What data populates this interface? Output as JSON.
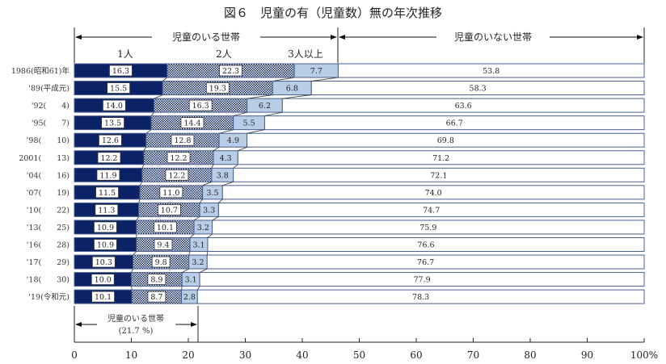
{
  "chart_data": {
    "type": "bar",
    "stacked": true,
    "orientation": "horizontal",
    "title": "図６　児童の有（児童数）無の年次推移",
    "xlim": [
      0,
      100
    ],
    "x_ticks": [
      "0",
      "10",
      "20",
      "30",
      "40",
      "50",
      "60",
      "70",
      "80",
      "90",
      "100%"
    ],
    "group_labels": {
      "with_children": "児童のいる世帯",
      "without_children": "児童のいない世帯"
    },
    "series_labels": [
      "1人",
      "2人",
      "3人以上"
    ],
    "categories": [
      "1986(昭和61)年",
      "'89(平成元)",
      "'92(　　4)",
      "'95(　　7)",
      "'98(　　10)",
      "2001(　　13)",
      "'04(　　16)",
      "'07(　　19)",
      "'10(　　22)",
      "'13(　　25)",
      "'16(　　28)",
      "'17(　　29)",
      "'18(　　30)",
      "'19(令和元)"
    ],
    "series": [
      {
        "name": "1人",
        "values": [
          16.3,
          15.5,
          14.0,
          13.5,
          12.6,
          12.2,
          11.9,
          11.5,
          11.3,
          10.9,
          10.9,
          10.3,
          10.0,
          10.1
        ]
      },
      {
        "name": "2人",
        "values": [
          22.3,
          19.3,
          16.3,
          14.4,
          12.8,
          12.2,
          12.2,
          11.0,
          10.7,
          10.1,
          9.4,
          9.8,
          8.9,
          8.7
        ]
      },
      {
        "name": "3人以上",
        "values": [
          7.7,
          6.8,
          6.2,
          5.5,
          4.9,
          4.3,
          3.8,
          3.5,
          3.3,
          3.2,
          3.1,
          3.2,
          3.1,
          2.8
        ]
      },
      {
        "name": "児童のいない世帯",
        "values": [
          53.8,
          58.3,
          63.6,
          66.7,
          69.8,
          71.2,
          72.1,
          74.0,
          74.7,
          75.9,
          76.6,
          76.7,
          77.9,
          78.3
        ]
      }
    ],
    "value_labels": [
      [
        "16.3",
        "22.3",
        "7.7",
        "53.8"
      ],
      [
        "15.5",
        "19.3",
        "6.8",
        "58.3"
      ],
      [
        "14.0",
        "16.3",
        "6.2",
        "63.6"
      ],
      [
        "13.5",
        "14.4",
        "5.5",
        "66.7"
      ],
      [
        "12.6",
        "12.8",
        "4.9",
        "69.8"
      ],
      [
        "12.2",
        "12.2",
        "4.3",
        "71.2"
      ],
      [
        "11.9",
        "12.2",
        "3.8",
        "72.1"
      ],
      [
        "11.5",
        "11.0",
        "3.5",
        "74.0"
      ],
      [
        "11.3",
        "10.7",
        "3.3",
        "74.7"
      ],
      [
        "10.9",
        "10.1",
        "3.2",
        "75.9"
      ],
      [
        "10.9",
        "9.4",
        "3.1",
        "76.6"
      ],
      [
        "10.3",
        "9.8",
        "3.2",
        "76.7"
      ],
      [
        "10.0",
        "8.9",
        "3.1",
        "77.9"
      ],
      [
        "10.1",
        "8.7",
        "2.8",
        "78.3"
      ]
    ],
    "bottom_annotation": {
      "label": "児童のいる世帯",
      "value_text": "(21.7 %)",
      "value": 21.7
    },
    "colors": {
      "one_child": "#0b2366",
      "two_children_pattern_dark": "#0b2366",
      "two_children_pattern_light": "#ffffff",
      "three_plus": "#b8cde6",
      "no_children": "#ffffff",
      "bar_border": "#4a5f8f"
    }
  }
}
